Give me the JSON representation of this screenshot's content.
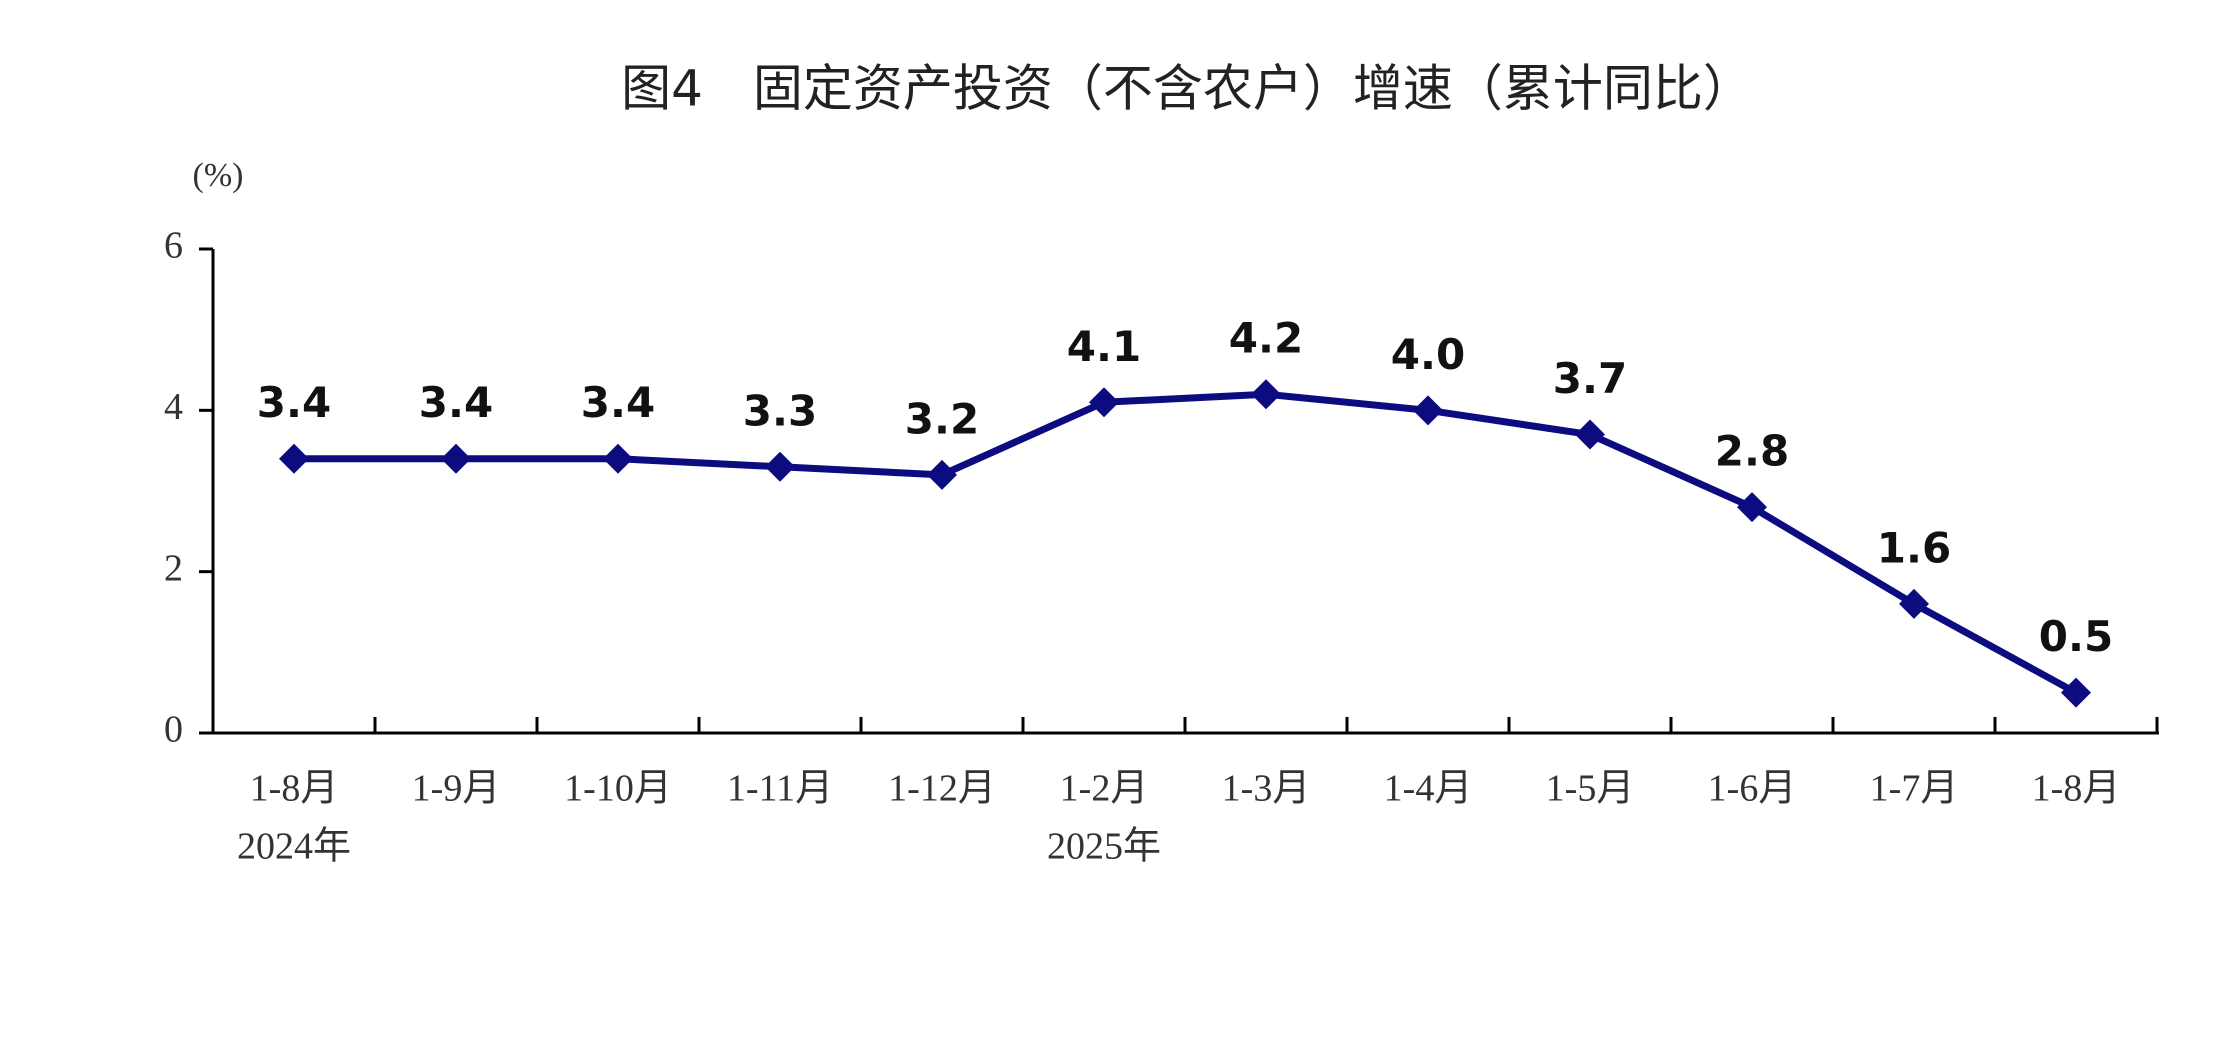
{
  "chart_data": {
    "type": "line",
    "title": "图4　固定资产投资（不含农户）增速（累计同比）",
    "y_unit_label": "(%)",
    "categories": [
      "1-8月",
      "1-9月",
      "1-10月",
      "1-11月",
      "1-12月",
      "1-2月",
      "1-3月",
      "1-4月",
      "1-5月",
      "1-6月",
      "1-7月",
      "1-8月"
    ],
    "category_group_labels": [
      "2024年",
      null,
      null,
      null,
      null,
      "2025年",
      null,
      null,
      null,
      null,
      null,
      null
    ],
    "series": [
      {
        "name": "固定资产投资增速",
        "color": "#0c0c80",
        "values": [
          3.4,
          3.4,
          3.4,
          3.3,
          3.2,
          4.1,
          4.2,
          4.0,
          3.7,
          2.8,
          1.6,
          0.5
        ],
        "value_labels": [
          "3.4",
          "3.4",
          "3.4",
          "3.3",
          "3.2",
          "4.1",
          "4.2",
          "4.0",
          "3.7",
          "2.8",
          "1.6",
          "0.5"
        ]
      }
    ],
    "ylim": [
      0,
      6
    ],
    "yticks": [
      0,
      2,
      4,
      6
    ],
    "grid": false,
    "legend": false
  }
}
